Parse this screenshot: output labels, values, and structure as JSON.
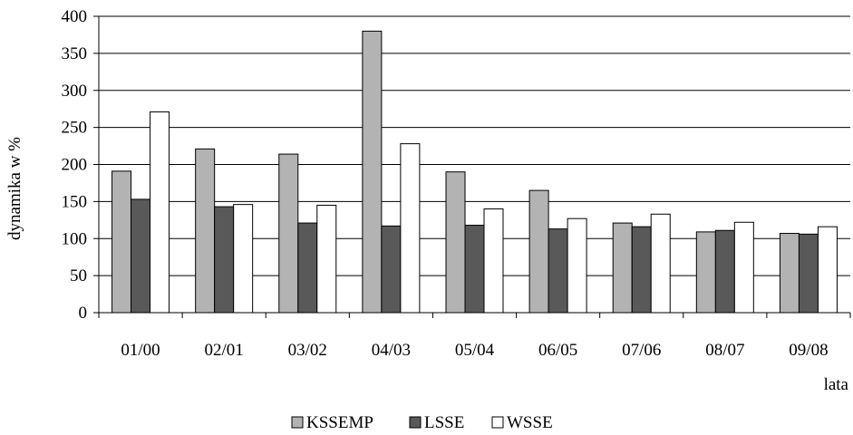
{
  "chart_data": {
    "type": "bar",
    "title": "",
    "ylabel": "dynamika w %",
    "xlabel": "lata",
    "ylim": [
      0,
      400
    ],
    "yticks": [
      0,
      50,
      100,
      150,
      200,
      250,
      300,
      350,
      400
    ],
    "grid": true,
    "legend_position": "bottom",
    "categories": [
      "01/00",
      "02/01",
      "03/02",
      "04/03",
      "05/04",
      "06/05",
      "07/06",
      "08/07",
      "09/08"
    ],
    "series": [
      {
        "name": "KSSEMP",
        "color": "#b3b3b3",
        "values": [
          191,
          221,
          214,
          380,
          190,
          165,
          121,
          109,
          107
        ]
      },
      {
        "name": "LSSE",
        "color": "#595959",
        "values": [
          153,
          143,
          121,
          117,
          118,
          113,
          116,
          111,
          106
        ]
      },
      {
        "name": "WSSE",
        "color": "#ffffff",
        "values": [
          271,
          146,
          145,
          228,
          140,
          127,
          133,
          122,
          116
        ]
      }
    ]
  }
}
